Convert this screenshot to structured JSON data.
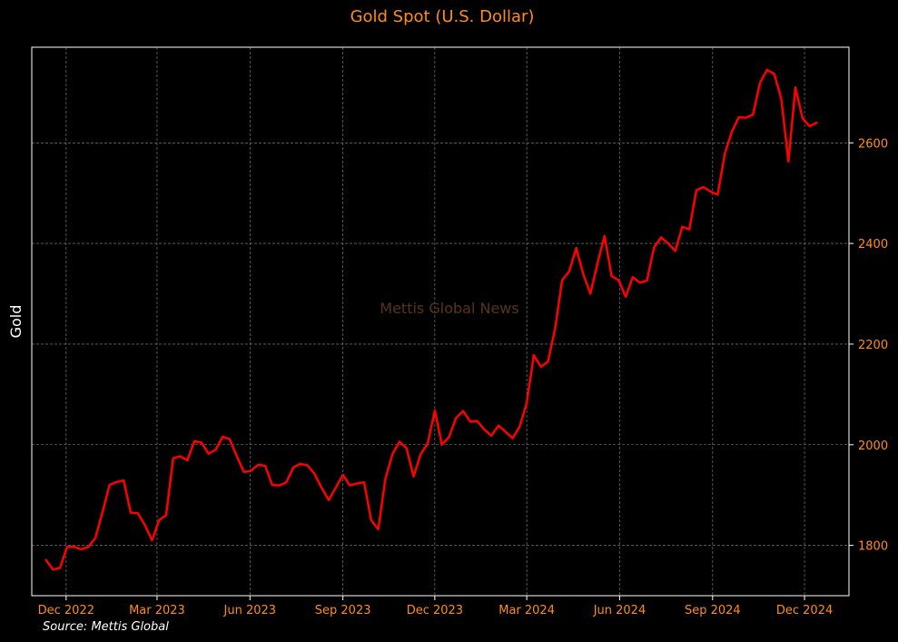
{
  "chart_data": {
    "type": "line",
    "title": "Gold Spot (U.S. Dollar)",
    "xlabel": "",
    "ylabel": "Gold",
    "x_ticks": [
      "Dec 2022",
      "Mar 2023",
      "Jun 2023",
      "Sep 2023",
      "Dec 2023",
      "Mar 2024",
      "Jun 2024",
      "Sep 2024",
      "Dec 2024"
    ],
    "x_tick_dates": [
      "2022-12-01",
      "2023-03-01",
      "2023-06-01",
      "2023-09-01",
      "2023-12-01",
      "2024-03-01",
      "2024-06-01",
      "2024-09-01",
      "2024-12-01"
    ],
    "y_ticks": [
      1800,
      2000,
      2200,
      2400,
      2600
    ],
    "xlim": [
      "2022-10-28",
      "2025-01-14"
    ],
    "ylim": [
      1700,
      2790
    ],
    "grid": true,
    "watermark": "Mettis Global News",
    "source": "Source: Mettis Global",
    "colors": {
      "background": "#000000",
      "line": "#ff0000",
      "text": "#ff8c1a",
      "ylabel": "#ffffff",
      "watermark": "#5a3418",
      "grid": "#8a8a8a",
      "spine": "#ffffff"
    },
    "series": [
      {
        "x": [
          "2022-11-11",
          "2022-11-18",
          "2022-11-25",
          "2022-12-02",
          "2022-12-09",
          "2022-12-16",
          "2022-12-23",
          "2022-12-30",
          "2023-01-06",
          "2023-01-13",
          "2023-01-20",
          "2023-01-27",
          "2023-02-03",
          "2023-02-10",
          "2023-02-17",
          "2023-02-24",
          "2023-03-03",
          "2023-03-10",
          "2023-03-17",
          "2023-03-24",
          "2023-03-31",
          "2023-04-07",
          "2023-04-14",
          "2023-04-21",
          "2023-04-28",
          "2023-05-05",
          "2023-05-12",
          "2023-05-19",
          "2023-05-26",
          "2023-06-02",
          "2023-06-09",
          "2023-06-16",
          "2023-06-23",
          "2023-06-30",
          "2023-07-07",
          "2023-07-14",
          "2023-07-21",
          "2023-07-28",
          "2023-08-04",
          "2023-08-11",
          "2023-08-18",
          "2023-08-25",
          "2023-09-01",
          "2023-09-08",
          "2023-09-15",
          "2023-09-22",
          "2023-09-29",
          "2023-10-06",
          "2023-10-13",
          "2023-10-20",
          "2023-10-27",
          "2023-11-03",
          "2023-11-10",
          "2023-11-17",
          "2023-11-24",
          "2023-12-01",
          "2023-12-08",
          "2023-12-15",
          "2023-12-22",
          "2023-12-29",
          "2024-01-05",
          "2024-01-12",
          "2024-01-19",
          "2024-01-26",
          "2024-02-02",
          "2024-02-09",
          "2024-02-16",
          "2024-02-23",
          "2024-03-01",
          "2024-03-08",
          "2024-03-15",
          "2024-03-22",
          "2024-03-29",
          "2024-04-05",
          "2024-04-12",
          "2024-04-19",
          "2024-04-26",
          "2024-05-03",
          "2024-05-10",
          "2024-05-17",
          "2024-05-24",
          "2024-05-31",
          "2024-06-07",
          "2024-06-14",
          "2024-06-21",
          "2024-06-28",
          "2024-07-05",
          "2024-07-12",
          "2024-07-19",
          "2024-07-26",
          "2024-08-02",
          "2024-08-09",
          "2024-08-16",
          "2024-08-23",
          "2024-08-30",
          "2024-09-06",
          "2024-09-13",
          "2024-09-20",
          "2024-09-27",
          "2024-10-04",
          "2024-10-11",
          "2024-10-18",
          "2024-10-25",
          "2024-11-01",
          "2024-11-08",
          "2024-11-15",
          "2024-11-22",
          "2024-11-29",
          "2024-12-06",
          "2024-12-13"
        ],
        "values": [
          1771,
          1752,
          1755,
          1797,
          1797,
          1792,
          1797,
          1815,
          1866,
          1920,
          1926,
          1929,
          1865,
          1864,
          1840,
          1810,
          1850,
          1860,
          1973,
          1977,
          1969,
          2007,
          2004,
          1982,
          1990,
          2016,
          2011,
          1977,
          1946,
          1948,
          1960,
          1958,
          1920,
          1919,
          1925,
          1955,
          1962,
          1959,
          1942,
          1914,
          1890,
          1915,
          1940,
          1919,
          1923,
          1925,
          1850,
          1832,
          1932,
          1981,
          2006,
          1993,
          1937,
          1981,
          2003,
          2068,
          2000,
          2015,
          2053,
          2067,
          2046,
          2047,
          2030,
          2018,
          2038,
          2026,
          2013,
          2036,
          2083,
          2178,
          2155,
          2165,
          2230,
          2327,
          2344,
          2391,
          2339,
          2300,
          2360,
          2415,
          2335,
          2327,
          2294,
          2333,
          2322,
          2326,
          2392,
          2412,
          2400,
          2385,
          2433,
          2428,
          2506,
          2512,
          2503,
          2497,
          2578,
          2622,
          2651,
          2650,
          2656,
          2720,
          2745,
          2737,
          2687,
          2563,
          2710,
          2649,
          2633,
          2640
        ]
      }
    ]
  }
}
